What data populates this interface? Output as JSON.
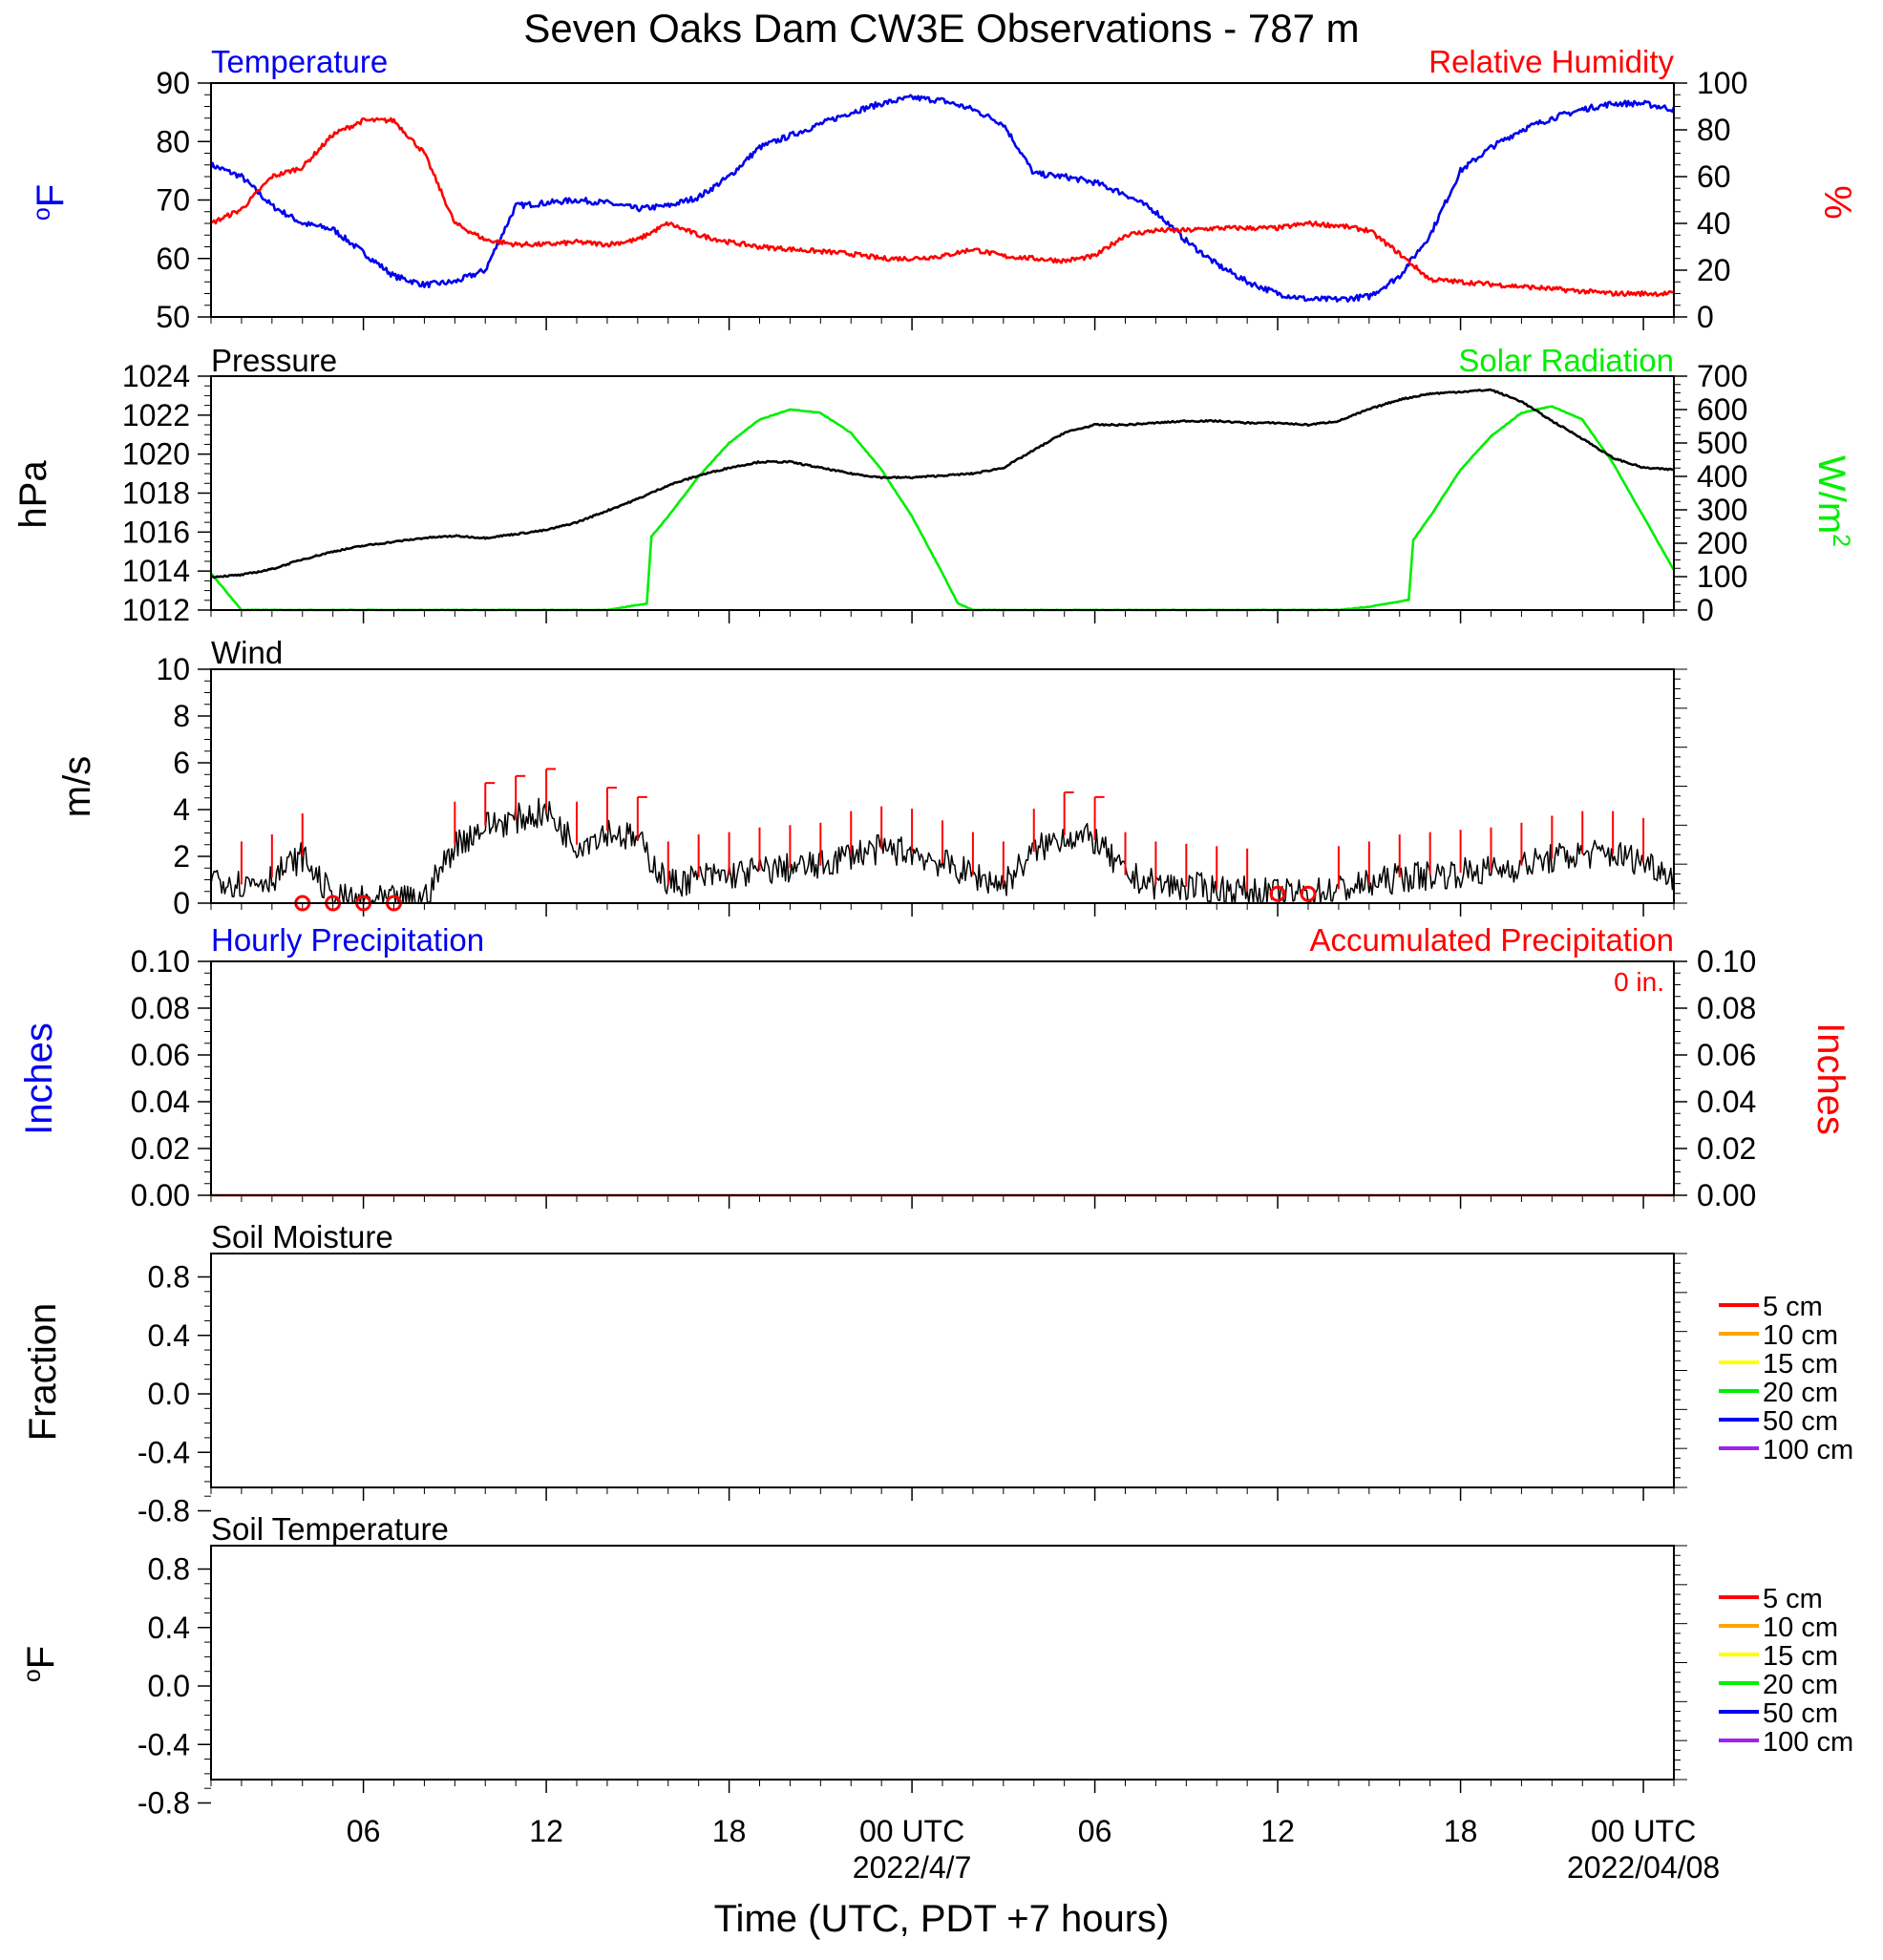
{
  "title": "Seven Oaks Dam CW3E Observations - 787 m",
  "colors": {
    "temperature": "#0000ee",
    "humidity": "#ff0000",
    "pressure": "#000000",
    "solar": "#00ee00",
    "wind": "#000000",
    "barb": "#ff0000",
    "precip_hourly": "#0000ee",
    "precip_accum": "#ff0000"
  },
  "time_axis": {
    "xlabel": "Time (UTC, PDT +7 hours)",
    "start": "2022-04-06 01:00 UTC",
    "end": "2022-04-08 01:00 UTC",
    "tick_labels": [
      "06",
      "12",
      "18",
      "00 UTC",
      "06",
      "12",
      "18",
      "00 UTC"
    ],
    "date_labels": [
      "2022/4/7",
      "2022/04/08"
    ]
  },
  "panels": {
    "temp_rh": {
      "left_title": "Temperature",
      "right_title": "Relative Humidity",
      "left_unit": "oF",
      "right_unit": "%",
      "left_ticks": [
        "90",
        "80",
        "70",
        "60",
        "50"
      ],
      "right_ticks": [
        "100",
        "80",
        "60",
        "40",
        "20",
        "0"
      ]
    },
    "pressure_solar": {
      "left_title": "Pressure",
      "right_title": "Solar Radiation",
      "left_unit": "hPa",
      "right_unit": "W/m2",
      "left_ticks": [
        "1024",
        "1022",
        "1020",
        "1018",
        "1016",
        "1014",
        "1012"
      ],
      "right_ticks": [
        "700",
        "600",
        "500",
        "400",
        "300",
        "200",
        "100",
        "0"
      ]
    },
    "wind": {
      "left_title": "Wind",
      "left_unit": "m/s",
      "left_ticks": [
        "10",
        "8",
        "6",
        "4",
        "2",
        "0"
      ]
    },
    "precip": {
      "left_title": "Hourly Precipitation",
      "right_title": "Accumulated Precipitation",
      "total_label": "0 in.",
      "left_unit": "Inches",
      "right_unit": "Inches",
      "left_ticks": [
        "0.10",
        "0.08",
        "0.06",
        "0.04",
        "0.02",
        "0.00"
      ],
      "right_ticks": [
        "0.10",
        "0.08",
        "0.06",
        "0.04",
        "0.02",
        "0.00"
      ]
    },
    "soil_moisture": {
      "left_title": "Soil Moisture",
      "left_unit": "Fraction",
      "left_ticks": [
        "0.8",
        "0.4",
        "0.0",
        "-0.4",
        "-0.8"
      ],
      "legend": [
        "5 cm",
        "10 cm",
        "15 cm",
        "20 cm",
        "50 cm",
        "100 cm"
      ]
    },
    "soil_temperature": {
      "left_title": "Soil Temperature",
      "left_unit": "oF",
      "left_ticks": [
        "0.8",
        "0.4",
        "0.0",
        "-0.4",
        "-0.8"
      ],
      "legend": [
        "5 cm",
        "10 cm",
        "15 cm",
        "20 cm",
        "50 cm",
        "100 cm"
      ]
    }
  },
  "legend_colors": [
    "#ff0000",
    "#ffa500",
    "#ffff00",
    "#00ee00",
    "#0000ee",
    "#a020f0"
  ],
  "chart_data": [
    {
      "type": "line",
      "x_unit": "hours since 2022-04-06 00:00 UTC",
      "series": [
        {
          "name": "Temperature",
          "axis": "left",
          "unit": "°F",
          "x": [
            1,
            2,
            3,
            4,
            5,
            6,
            7,
            8,
            9,
            10,
            11,
            12,
            13,
            14,
            15,
            16,
            17,
            18,
            19,
            20,
            21,
            22,
            23,
            24,
            25,
            26,
            27,
            28,
            29,
            30,
            31,
            32,
            33,
            34,
            35,
            36,
            37,
            38,
            39,
            40,
            41,
            42,
            43,
            44,
            45,
            46,
            47,
            48,
            49
          ],
          "y": [
            76,
            74,
            69,
            66,
            65,
            61,
            57,
            55.5,
            56,
            58,
            69,
            69.5,
            70,
            69.5,
            68.5,
            69,
            70.5,
            74,
            79,
            81,
            83,
            85,
            86.5,
            87.5,
            87,
            85.5,
            83,
            74.5,
            74,
            73,
            71,
            68,
            63,
            59,
            56,
            54,
            53,
            53,
            53.5,
            57,
            64,
            75,
            79,
            82,
            84,
            85.5,
            86.5,
            86.5,
            85.5
          ],
          "ylim": [
            50,
            90
          ]
        },
        {
          "name": "Relative Humidity",
          "axis": "right",
          "unit": "%",
          "x": [
            1,
            2,
            3,
            4,
            5,
            6,
            7,
            8,
            9,
            10,
            11,
            12,
            13,
            14,
            15,
            16,
            17,
            18,
            19,
            20,
            21,
            22,
            23,
            24,
            25,
            26,
            27,
            28,
            29,
            30,
            31,
            32,
            33,
            34,
            35,
            36,
            37,
            38,
            39,
            40,
            41,
            42,
            43,
            44,
            45,
            46,
            47,
            48,
            49
          ],
          "y": [
            40,
            46,
            60,
            64,
            78,
            84,
            84,
            70,
            40,
            33,
            31,
            31,
            32,
            31,
            33,
            40,
            35,
            32,
            30,
            29,
            28,
            27,
            25,
            25,
            26,
            29,
            26,
            25,
            24,
            26,
            35,
            37,
            37,
            38,
            38,
            38,
            40,
            39,
            37,
            27,
            16,
            15,
            14,
            13,
            12,
            11,
            10,
            10,
            10
          ],
          "ylim": [
            0,
            100
          ]
        }
      ]
    },
    {
      "type": "line",
      "x_unit": "hours since 2022-04-06 00:00 UTC",
      "series": [
        {
          "name": "Pressure",
          "axis": "left",
          "unit": "hPa",
          "x": [
            1,
            2,
            3,
            4,
            5,
            6,
            7,
            8,
            9,
            10,
            11,
            12,
            13,
            14,
            15,
            16,
            17,
            18,
            19,
            20,
            21,
            22,
            23,
            24,
            25,
            26,
            27,
            28,
            29,
            30,
            31,
            32,
            33,
            34,
            35,
            36,
            37,
            38,
            39,
            40,
            41,
            42,
            43,
            44,
            45,
            46,
            47,
            48,
            49
          ],
          "y": [
            1013.7,
            1013.8,
            1014.1,
            1014.6,
            1015.0,
            1015.3,
            1015.5,
            1015.7,
            1015.8,
            1015.7,
            1015.9,
            1016.1,
            1016.5,
            1017.1,
            1017.7,
            1018.4,
            1018.9,
            1019.3,
            1019.6,
            1019.6,
            1019.3,
            1019.0,
            1018.8,
            1018.8,
            1018.9,
            1019.0,
            1019.3,
            1020.2,
            1021.1,
            1021.5,
            1021.5,
            1021.6,
            1021.7,
            1021.7,
            1021.6,
            1021.6,
            1021.5,
            1021.7,
            1022.3,
            1022.8,
            1023.1,
            1023.2,
            1023.3,
            1022.7,
            1021.7,
            1020.8,
            1019.8,
            1019.3,
            1019.2
          ],
          "ylim": [
            1012,
            1024
          ]
        },
        {
          "name": "Solar Radiation",
          "axis": "right",
          "unit": "W/m²",
          "x": [
            1,
            2,
            3,
            4,
            14,
            15.3,
            15.45,
            16,
            17,
            18,
            19,
            20,
            21,
            22,
            23,
            24,
            25,
            25.5,
            26,
            38,
            39,
            40.3,
            40.45,
            41,
            42,
            43,
            44,
            45,
            46,
            47,
            48,
            49
          ],
          "y": [
            110,
            0,
            0,
            0,
            0,
            20,
            220,
            280,
            400,
            500,
            570,
            600,
            590,
            530,
            420,
            280,
            110,
            20,
            0,
            0,
            10,
            30,
            210,
            280,
            420,
            520,
            590,
            610,
            570,
            440,
            280,
            120
          ],
          "ylim": [
            0,
            700
          ]
        }
      ]
    },
    {
      "type": "line",
      "x_unit": "hours since 2022-04-06 00:00 UTC",
      "series": [
        {
          "name": "Wind",
          "axis": "left",
          "unit": "m/s",
          "x": [
            1,
            2,
            3,
            4,
            5,
            6,
            7,
            8,
            9,
            10,
            11,
            12,
            13,
            14,
            15,
            16,
            17,
            18,
            19,
            20,
            21,
            22,
            23,
            24,
            25,
            26,
            27,
            28,
            29,
            30,
            31,
            32,
            33,
            34,
            35,
            36,
            37,
            38,
            39,
            40,
            41,
            42,
            43,
            44,
            45,
            46,
            47,
            48,
            49
          ],
          "y": [
            1.2,
            0.8,
            1.1,
            2.0,
            0.2,
            0.1,
            0.1,
            0.2,
            2.5,
            3.3,
            3.6,
            3.9,
            2.5,
            3.1,
            2.7,
            0.8,
            1.1,
            1.2,
            1.4,
            1.5,
            1.6,
            2.1,
            2.3,
            2.2,
            1.7,
            1.2,
            0.8,
            2.2,
            2.9,
            2.7,
            1.2,
            0.8,
            0.7,
            0.6,
            0.5,
            0.4,
            0.4,
            0.6,
            0.8,
            1.1,
            1.2,
            1.3,
            1.4,
            1.6,
            1.9,
            2.1,
            2.1,
            1.8,
            1.2
          ],
          "ylim": [
            0,
            10
          ]
        },
        {
          "name": "Calm",
          "type": "scatter",
          "x": [
            4,
            5,
            6,
            7,
            36,
            37
          ],
          "y": [
            0,
            0,
            0,
            0,
            0.4,
            0.4
          ]
        }
      ]
    },
    {
      "type": "line",
      "series": [
        {
          "name": "Hourly Precipitation",
          "axis": "left",
          "unit": "in",
          "x": [
            1,
            49
          ],
          "y": [
            0,
            0
          ],
          "ylim": [
            0,
            0.1
          ]
        },
        {
          "name": "Accumulated Precipitation",
          "axis": "right",
          "unit": "in",
          "x": [
            1,
            49
          ],
          "y": [
            0,
            0
          ],
          "ylim": [
            0,
            0.1
          ]
        }
      ]
    },
    {
      "type": "line",
      "series": [],
      "ylim": [
        -1,
        1
      ]
    },
    {
      "type": "line",
      "series": [],
      "ylim": [
        -1,
        1
      ]
    }
  ]
}
